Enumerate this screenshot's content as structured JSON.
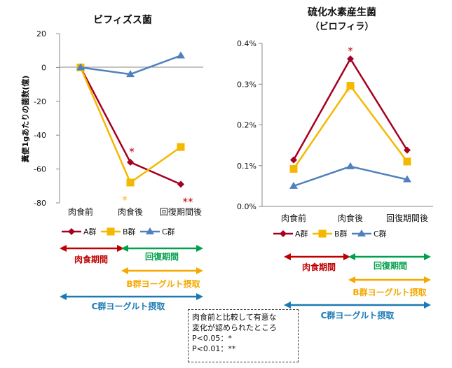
{
  "chart_data": [
    {
      "type": "line",
      "title": "ビフィズス菌",
      "subtitle": "",
      "ylabel": "糞便1gあたりの菌数(億)",
      "categories": [
        "肉食前",
        "肉食後",
        "回復期間後"
      ],
      "ylim": [
        -80,
        20
      ],
      "yticks": [
        "20",
        "0",
        "-20",
        "-40",
        "-60",
        "-80"
      ],
      "ytick_values": [
        20,
        0,
        -20,
        -40,
        -60,
        -80
      ],
      "series": [
        {
          "name": "A群",
          "color": "#a50021",
          "marker": "diamond",
          "values": [
            0,
            -56,
            -69
          ]
        },
        {
          "name": "B群",
          "color": "#f5b800",
          "marker": "square",
          "values": [
            0,
            -68,
            -47
          ]
        },
        {
          "name": "C群",
          "color": "#4f81bd",
          "marker": "triangle",
          "values": [
            0,
            -4,
            7
          ]
        }
      ],
      "significance": [
        {
          "category": "肉食後",
          "series": "A群",
          "label": "*",
          "color": "#c00000"
        },
        {
          "category": "肉食後",
          "series": "B群",
          "label": "*",
          "color": "#f5b800"
        },
        {
          "category": "回復期間後",
          "series": "A群",
          "label": "**",
          "color": "#c00000"
        }
      ],
      "legend": [
        "A群",
        "B群",
        "C群"
      ]
    },
    {
      "type": "line",
      "title": "硫化水素産生菌",
      "subtitle": "（ビロフィラ）",
      "ylabel": "",
      "categories": [
        "肉食前",
        "肉食後",
        "回復期間後"
      ],
      "ylim": [
        0,
        0.4
      ],
      "yticks": [
        "0.4%",
        "0.3%",
        "0.2%",
        "0.1%",
        "0.0%"
      ],
      "ytick_values": [
        0.4,
        0.3,
        0.2,
        0.1,
        0.0
      ],
      "series": [
        {
          "name": "A群",
          "color": "#a50021",
          "marker": "diamond",
          "values": [
            0.114,
            0.362,
            0.138
          ]
        },
        {
          "name": "B群",
          "color": "#f5b800",
          "marker": "square",
          "values": [
            0.092,
            0.296,
            0.11
          ]
        },
        {
          "name": "C群",
          "color": "#4f81bd",
          "marker": "triangle",
          "values": [
            0.05,
            0.098,
            0.066
          ]
        }
      ],
      "significance": [
        {
          "category": "肉食後",
          "series": "A群",
          "label": "*",
          "color": "#c00000"
        },
        {
          "category": "肉食後",
          "series": "B群",
          "label": "*",
          "color": "#f5b800"
        }
      ],
      "legend": [
        "A群",
        "B群",
        "C群"
      ]
    }
  ],
  "periods": {
    "meat": {
      "label": "肉食期間",
      "color": "#c00000"
    },
    "recovery": {
      "label": "回復期間",
      "color": "#00a04c"
    },
    "b_yogurt": {
      "label": "B群ヨーグルト摂取",
      "color": "#f5a800"
    },
    "c_yogurt": {
      "label": "C群ヨーグルト摂取",
      "color": "#1a7ab5"
    }
  },
  "note": {
    "line1": "肉食前と比較して有意な",
    "line2": "変化が認められたところ",
    "line3": "P<0.05：*",
    "line4": "P<0.01：**"
  }
}
